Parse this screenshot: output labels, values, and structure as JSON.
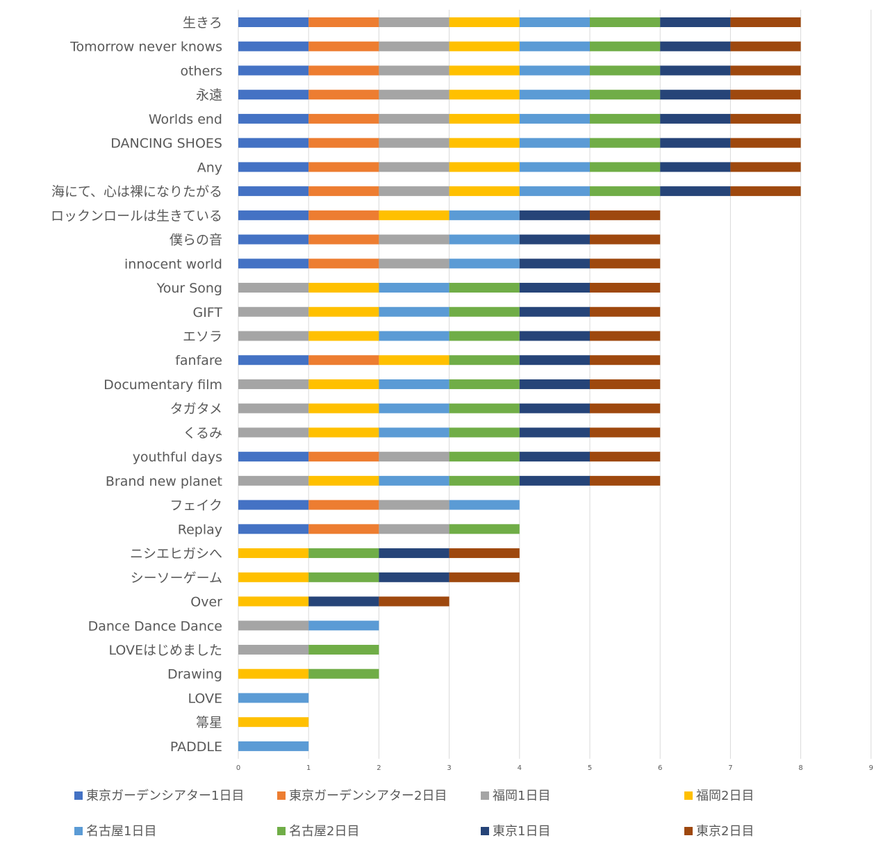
{
  "chart_data": {
    "type": "bar",
    "orientation": "horizontal",
    "stacked": true,
    "title": "",
    "xlabel": "",
    "ylabel": "",
    "xlim": [
      0,
      9
    ],
    "x_ticks": [
      0,
      1,
      2,
      3,
      4,
      5,
      6,
      7,
      8,
      9
    ],
    "grid": true,
    "legend_position": "bottom",
    "series_names": [
      "東京ガーデンシアター1日目",
      "東京ガーデンシアター2日目",
      "福岡1日目",
      "福岡2日目",
      "名古屋1日目",
      "名古屋2日目",
      "東京1日目",
      "東京2日目"
    ],
    "series_colors": [
      "#4472C4",
      "#ED7D31",
      "#A5A5A5",
      "#FFC000",
      "#5B9BD5",
      "#70AD47",
      "#264478",
      "#9E480E"
    ],
    "categories": [
      {
        "name": "生きろ",
        "segments": [
          0,
          1,
          2,
          3,
          4,
          5,
          6,
          7
        ]
      },
      {
        "name": "Tomorrow never knows",
        "segments": [
          0,
          1,
          2,
          3,
          4,
          5,
          6,
          7
        ]
      },
      {
        "name": "others",
        "segments": [
          0,
          1,
          2,
          3,
          4,
          5,
          6,
          7
        ]
      },
      {
        "name": "永遠",
        "segments": [
          0,
          1,
          2,
          3,
          4,
          5,
          6,
          7
        ]
      },
      {
        "name": "Worlds end",
        "segments": [
          0,
          1,
          2,
          3,
          4,
          5,
          6,
          7
        ]
      },
      {
        "name": "DANCING SHOES",
        "segments": [
          0,
          1,
          2,
          3,
          4,
          5,
          6,
          7
        ]
      },
      {
        "name": "Any",
        "segments": [
          0,
          1,
          2,
          3,
          4,
          5,
          6,
          7
        ]
      },
      {
        "name": "海にて、心は裸になりたがる",
        "segments": [
          0,
          1,
          2,
          3,
          4,
          5,
          6,
          7
        ]
      },
      {
        "name": "ロックンロールは生きている",
        "segments": [
          0,
          1,
          3,
          4,
          6,
          7
        ]
      },
      {
        "name": "僕らの音",
        "segments": [
          0,
          1,
          2,
          4,
          6,
          7
        ]
      },
      {
        "name": "innocent world",
        "segments": [
          0,
          1,
          2,
          4,
          6,
          7
        ]
      },
      {
        "name": "Your Song",
        "segments": [
          2,
          3,
          4,
          5,
          6,
          7
        ]
      },
      {
        "name": "GIFT",
        "segments": [
          2,
          3,
          4,
          5,
          6,
          7
        ]
      },
      {
        "name": "エソラ",
        "segments": [
          2,
          3,
          4,
          5,
          6,
          7
        ]
      },
      {
        "name": "fanfare",
        "segments": [
          0,
          1,
          3,
          5,
          6,
          7
        ]
      },
      {
        "name": "Documentary film",
        "segments": [
          2,
          3,
          4,
          5,
          6,
          7
        ]
      },
      {
        "name": "タガタメ",
        "segments": [
          2,
          3,
          4,
          5,
          6,
          7
        ]
      },
      {
        "name": "くるみ",
        "segments": [
          2,
          3,
          4,
          5,
          6,
          7
        ]
      },
      {
        "name": "youthful days",
        "segments": [
          0,
          1,
          2,
          5,
          6,
          7
        ]
      },
      {
        "name": "Brand new planet",
        "segments": [
          2,
          3,
          4,
          5,
          6,
          7
        ]
      },
      {
        "name": "フェイク",
        "segments": [
          0,
          1,
          2,
          4
        ]
      },
      {
        "name": "Replay",
        "segments": [
          0,
          1,
          2,
          5
        ]
      },
      {
        "name": "ニシエヒガシへ",
        "segments": [
          3,
          5,
          6,
          7
        ]
      },
      {
        "name": "シーソーゲーム",
        "segments": [
          3,
          5,
          6,
          7
        ]
      },
      {
        "name": "Over",
        "segments": [
          3,
          6,
          7
        ]
      },
      {
        "name": "Dance Dance Dance",
        "segments": [
          2,
          4
        ]
      },
      {
        "name": "LOVEはじめました",
        "segments": [
          2,
          5
        ]
      },
      {
        "name": "Drawing",
        "segments": [
          3,
          5
        ]
      },
      {
        "name": "LOVE",
        "segments": [
          4
        ]
      },
      {
        "name": "箒星",
        "segments": [
          3
        ]
      },
      {
        "name": "PADDLE",
        "segments": [
          4
        ]
      }
    ]
  }
}
